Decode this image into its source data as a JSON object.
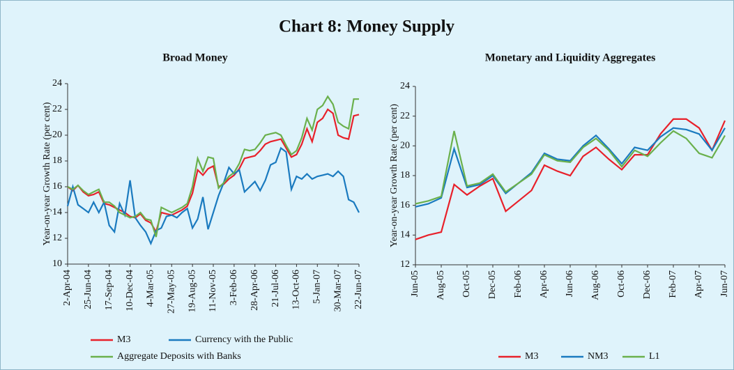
{
  "title": "Chart 8: Money Supply",
  "chart_data": [
    {
      "type": "line",
      "title": "Broad Money",
      "y_label": "Year-on-year Growth Rate (per cent)",
      "categories": [
        "2-Apr-04",
        null,
        null,
        null,
        "25-Jun-04",
        null,
        null,
        null,
        "17-Sep-04",
        null,
        null,
        null,
        "10-Dec-04",
        null,
        null,
        null,
        "4-Mar-05",
        null,
        null,
        null,
        "27-May-05",
        null,
        null,
        null,
        "19-Aug-05",
        null,
        null,
        null,
        "11-Nov-05",
        null,
        null,
        null,
        "3-Feb-06",
        null,
        null,
        null,
        "28-Apr-06",
        null,
        null,
        null,
        "21-Jul-06",
        null,
        null,
        null,
        "13-Oct-06",
        null,
        null,
        null,
        "5-Jan-07",
        null,
        null,
        null,
        "30-Mar-07",
        null,
        null,
        null,
        "22-Jun-07"
      ],
      "series": [
        {
          "name": "M3",
          "color": "#e8202a",
          "values": [
            16.0,
            15.7,
            16.1,
            15.6,
            15.3,
            15.4,
            15.6,
            14.7,
            14.6,
            14.4,
            14.2,
            14.0,
            13.7,
            13.6,
            13.9,
            13.4,
            13.2,
            12.5,
            14.0,
            13.9,
            13.8,
            14.0,
            14.2,
            14.5,
            15.5,
            17.3,
            16.9,
            17.4,
            17.6,
            16.0,
            16.2,
            16.6,
            16.9,
            17.4,
            18.2,
            18.3,
            18.4,
            18.8,
            19.3,
            19.5,
            19.6,
            19.7,
            19.0,
            18.3,
            18.5,
            19.3,
            20.5,
            19.5,
            21.0,
            21.3,
            22.0,
            21.7,
            20.0,
            19.8,
            19.7,
            21.5,
            21.6
          ]
        },
        {
          "name": "Currency with the Public",
          "color": "#1a7abf",
          "values": [
            14.5,
            16.0,
            14.6,
            14.3,
            14.0,
            14.8,
            14.0,
            14.8,
            13.0,
            12.5,
            14.7,
            13.8,
            16.5,
            13.6,
            13.0,
            12.5,
            11.6,
            12.6,
            12.8,
            13.7,
            13.8,
            13.6,
            14.0,
            14.3,
            12.8,
            13.5,
            15.2,
            12.7,
            14.0,
            15.3,
            16.3,
            17.5,
            17.0,
            17.3,
            15.6,
            16.0,
            16.4,
            15.7,
            16.5,
            17.7,
            17.9,
            19.0,
            18.7,
            15.8,
            16.8,
            16.6,
            17.0,
            16.6,
            16.8,
            16.9,
            17.0,
            16.8,
            17.2,
            16.8,
            15.0,
            14.8,
            14.0
          ]
        },
        {
          "name": "Aggregate Deposits with Banks",
          "color": "#6ab04c",
          "values": [
            16.0,
            15.8,
            16.1,
            15.7,
            15.4,
            15.6,
            15.8,
            14.8,
            14.8,
            14.5,
            14.0,
            13.8,
            13.6,
            13.7,
            14.0,
            13.5,
            13.4,
            12.1,
            14.4,
            14.2,
            14.0,
            14.2,
            14.4,
            14.7,
            16.0,
            18.2,
            17.2,
            18.3,
            18.2,
            15.9,
            16.3,
            16.8,
            17.1,
            17.8,
            18.9,
            18.8,
            18.9,
            19.4,
            20.0,
            20.1,
            20.2,
            20.0,
            19.2,
            18.5,
            18.8,
            19.8,
            21.3,
            20.4,
            22.0,
            22.3,
            23.0,
            22.4,
            21.0,
            20.7,
            20.5,
            22.8,
            22.8
          ]
        }
      ],
      "ylim": [
        10,
        24
      ],
      "yticks": [
        10,
        12,
        14,
        16,
        18,
        20,
        22,
        24
      ],
      "grid": false,
      "legend": "bottom-left"
    },
    {
      "type": "line",
      "title": "Monetary and Liquidity Aggregates",
      "y_label": "Year-on-year Growth Rate (per cent)",
      "categories": [
        "Jun-05",
        null,
        "Aug-05",
        null,
        "Oct-05",
        null,
        "Dec-05",
        null,
        "Feb-06",
        null,
        "Apr-06",
        null,
        "Jun-06",
        null,
        "Aug-06",
        null,
        "Oct-06",
        null,
        "Dec-06",
        null,
        "Feb-07",
        null,
        "Apr-07",
        null,
        "Jun-07"
      ],
      "series": [
        {
          "name": "M3",
          "color": "#e8202a",
          "values": [
            13.7,
            14.0,
            14.2,
            17.4,
            16.7,
            17.3,
            17.8,
            15.6,
            16.3,
            17.0,
            18.7,
            18.3,
            18.0,
            19.3,
            19.9,
            19.1,
            18.4,
            19.4,
            19.4,
            20.8,
            21.8,
            21.8,
            21.2,
            19.7,
            21.7
          ]
        },
        {
          "name": "NM3",
          "color": "#1a7abf",
          "values": [
            15.9,
            16.1,
            16.5,
            19.8,
            17.2,
            17.4,
            18.0,
            16.8,
            17.5,
            18.2,
            19.5,
            19.1,
            19.0,
            20.0,
            20.7,
            19.8,
            18.8,
            19.9,
            19.7,
            20.6,
            21.2,
            21.1,
            20.8,
            19.7,
            21.2
          ]
        },
        {
          "name": "L1",
          "color": "#6ab04c",
          "values": [
            16.1,
            16.3,
            16.6,
            21.0,
            17.3,
            17.5,
            18.1,
            16.9,
            17.5,
            18.1,
            19.4,
            19.0,
            18.9,
            19.9,
            20.5,
            19.7,
            18.6,
            19.7,
            19.3,
            20.2,
            21.0,
            20.5,
            19.5,
            19.2,
            20.7
          ]
        }
      ],
      "ylim": [
        12,
        24
      ],
      "yticks": [
        12,
        14,
        16,
        18,
        20,
        22,
        24
      ],
      "grid": false,
      "legend": "bottom"
    }
  ]
}
